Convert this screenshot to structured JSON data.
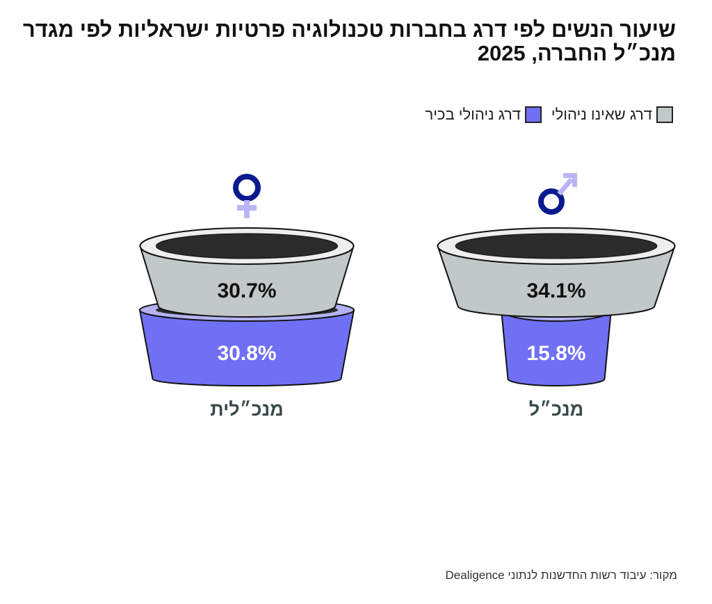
{
  "title": "שיעור הנשים לפי דרג בחברות טכנולוגיה פרטיות ישראליות לפי מגדר מנכ״ל החברה, 2025",
  "source": "מקור: עיבוד רשות החדשנות לנתוני Dealigence",
  "colors": {
    "non_management": "#c2c7c7",
    "senior_management": "#7070f5",
    "gender_icon": "#0b1a8c",
    "gender_icon_accent": "#b9b5f5",
    "inner": "#2b2b2b"
  },
  "chart_data": {
    "type": "bar",
    "title": "שיעור הנשים לפי דרג בחברות טכנולוגיה פרטיות ישראליות לפי מגדר מנכ״ל החברה, 2025",
    "categories": [
      "מנכ״לית",
      "מנכ״ל"
    ],
    "category_icons": [
      "female-symbol",
      "male-symbol"
    ],
    "unit": "%",
    "legend": [
      "דרג שאינו ניהולי",
      "דרג ניהולי בכיר"
    ],
    "legend_placement": "top-right",
    "series": [
      {
        "name": "דרג שאינו ניהולי",
        "values": [
          30.7,
          34.1
        ],
        "labels": [
          "30.7%",
          "34.1%"
        ]
      },
      {
        "name": "דרג ניהולי בכיר",
        "values": [
          30.8,
          15.8
        ],
        "labels": [
          "30.8%",
          "15.8%"
        ]
      }
    ]
  }
}
